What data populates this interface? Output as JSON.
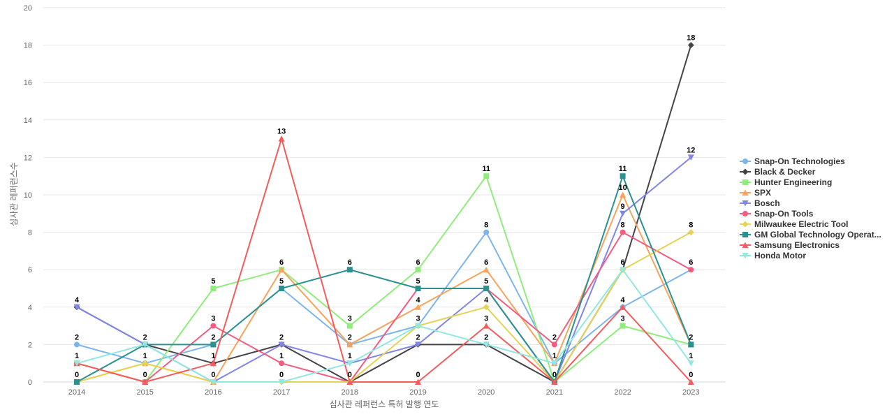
{
  "chart_data": {
    "type": "line",
    "title": "",
    "xlabel": "심사관 레퍼런스 특허 발행 연도",
    "ylabel": "심사관 레퍼런스수",
    "x": [
      "2014",
      "2015",
      "2016",
      "2017",
      "2018",
      "2019",
      "2020",
      "2021",
      "2022",
      "2023"
    ],
    "ylim": [
      0,
      20
    ],
    "yticks": [
      0,
      2,
      4,
      6,
      8,
      10,
      12,
      14,
      16,
      18,
      20
    ],
    "grid": true,
    "legend_position": "right",
    "series": [
      {
        "name": "Snap-On Technologies",
        "color": "#7cb5ec",
        "marker": "circle",
        "values": [
          2,
          1,
          2,
          5,
          2,
          3,
          8,
          1,
          4,
          6
        ]
      },
      {
        "name": "Black & Decker",
        "color": "#434348",
        "marker": "diamond",
        "values": [
          4,
          2,
          1,
          2,
          0,
          2,
          2,
          0,
          6,
          18
        ]
      },
      {
        "name": "Hunter Engineering",
        "color": "#90ed7d",
        "marker": "square",
        "values": [
          1,
          0,
          5,
          6,
          3,
          6,
          11,
          0,
          3,
          2
        ]
      },
      {
        "name": "SPX",
        "color": "#f7a35c",
        "marker": "triangle",
        "values": [
          0,
          1,
          0,
          6,
          2,
          4,
          6,
          1,
          10,
          2
        ]
      },
      {
        "name": "Bosch",
        "color": "#8085e9",
        "marker": "triangle-down",
        "values": [
          4,
          2,
          0,
          2,
          1,
          2,
          5,
          0,
          9,
          12
        ]
      },
      {
        "name": "Snap-On Tools",
        "color": "#f15c80",
        "marker": "circle",
        "values": [
          1,
          0,
          3,
          1,
          0,
          5,
          5,
          2,
          8,
          6
        ]
      },
      {
        "name": "Milwaukee Electric Tool",
        "color": "#e4d354",
        "marker": "diamond",
        "values": [
          0,
          1,
          0,
          0,
          0,
          3,
          4,
          0,
          6,
          8
        ]
      },
      {
        "name": "GM Global Technology Operat...",
        "color": "#2b908f",
        "marker": "square",
        "values": [
          0,
          2,
          2,
          5,
          6,
          5,
          5,
          0,
          11,
          2
        ]
      },
      {
        "name": "Samsung Electronics",
        "color": "#f45b5b",
        "marker": "triangle",
        "values": [
          1,
          0,
          1,
          13,
          0,
          0,
          3,
          0,
          4,
          0
        ]
      },
      {
        "name": "Honda Motor",
        "color": "#91e8e1",
        "marker": "triangle-down",
        "values": [
          1,
          2,
          0,
          0,
          1,
          3,
          2,
          1,
          6,
          1
        ]
      }
    ],
    "data_labels": [
      {
        "year": "2014",
        "value": 4,
        "text": "4",
        "series": "Black & Decker"
      },
      {
        "year": "2014",
        "value": 2,
        "text": "2",
        "series": "Snap-On Technologies"
      },
      {
        "year": "2014",
        "value": 1,
        "text": "1",
        "series": "Hunter Engineering"
      },
      {
        "year": "2014",
        "value": 0,
        "text": "0",
        "series": "GM Global Technology Operat..."
      },
      {
        "year": "2015",
        "value": 2,
        "text": "2",
        "series": "GM Global Technology Operat..."
      },
      {
        "year": "2015",
        "value": 1,
        "text": "1",
        "series": "SPX"
      },
      {
        "year": "2015",
        "value": 0,
        "text": "0",
        "series": "Samsung Electronics"
      },
      {
        "year": "2016",
        "value": 5,
        "text": "5",
        "series": "Hunter Engineering"
      },
      {
        "year": "2016",
        "value": 3,
        "text": "3",
        "series": "Snap-On Tools"
      },
      {
        "year": "2016",
        "value": 2,
        "text": "2",
        "series": "GM Global Technology Operat..."
      },
      {
        "year": "2016",
        "value": 1,
        "text": "1",
        "series": "Black & Decker"
      },
      {
        "year": "2016",
        "value": 0,
        "text": "0",
        "series": "Bosch"
      },
      {
        "year": "2017",
        "value": 13,
        "text": "13",
        "series": "Samsung Electronics"
      },
      {
        "year": "2017",
        "value": 6,
        "text": "6",
        "series": "Hunter Engineering"
      },
      {
        "year": "2017",
        "value": 5,
        "text": "5",
        "series": "GM Global Technology Operat..."
      },
      {
        "year": "2017",
        "value": 2,
        "text": "2",
        "series": "Black & Decker"
      },
      {
        "year": "2017",
        "value": 1,
        "text": "1",
        "series": "Snap-On Tools"
      },
      {
        "year": "2017",
        "value": 0,
        "text": "0",
        "series": "Honda Motor"
      },
      {
        "year": "2018",
        "value": 6,
        "text": "6",
        "series": "GM Global Technology Operat..."
      },
      {
        "year": "2018",
        "value": 3,
        "text": "3",
        "series": "Hunter Engineering"
      },
      {
        "year": "2018",
        "value": 2,
        "text": "2",
        "series": "SPX"
      },
      {
        "year": "2018",
        "value": 1,
        "text": "1",
        "series": "Bosch"
      },
      {
        "year": "2018",
        "value": 0,
        "text": "0",
        "series": "Black & Decker"
      },
      {
        "year": "2019",
        "value": 6,
        "text": "6",
        "series": "Hunter Engineering"
      },
      {
        "year": "2019",
        "value": 5,
        "text": "5",
        "series": "GM Global Technology Operat..."
      },
      {
        "year": "2019",
        "value": 4,
        "text": "4",
        "series": "SPX"
      },
      {
        "year": "2019",
        "value": 3,
        "text": "3",
        "series": "Snap-On Technologies"
      },
      {
        "year": "2019",
        "value": 2,
        "text": "2",
        "series": "Black & Decker"
      },
      {
        "year": "2019",
        "value": 0,
        "text": "0",
        "series": "Samsung Electronics"
      },
      {
        "year": "2020",
        "value": 11,
        "text": "11",
        "series": "Hunter Engineering"
      },
      {
        "year": "2020",
        "value": 8,
        "text": "8",
        "series": "Snap-On Technologies"
      },
      {
        "year": "2020",
        "value": 6,
        "text": "6",
        "series": "SPX"
      },
      {
        "year": "2020",
        "value": 5,
        "text": "5",
        "series": "GM Global Technology Operat..."
      },
      {
        "year": "2020",
        "value": 4,
        "text": "4",
        "series": "Milwaukee Electric Tool"
      },
      {
        "year": "2020",
        "value": 3,
        "text": "3",
        "series": "Samsung Electronics"
      },
      {
        "year": "2020",
        "value": 2,
        "text": "2",
        "series": "Black & Decker"
      },
      {
        "year": "2021",
        "value": 2,
        "text": "2",
        "series": "Snap-On Tools"
      },
      {
        "year": "2021",
        "value": 1,
        "text": "1",
        "series": "Snap-On Technologies"
      },
      {
        "year": "2021",
        "value": 0,
        "text": "0",
        "series": "Black & Decker"
      },
      {
        "year": "2022",
        "value": 11,
        "text": "11",
        "series": "GM Global Technology Operat..."
      },
      {
        "year": "2022",
        "value": 10,
        "text": "10",
        "series": "SPX"
      },
      {
        "year": "2022",
        "value": 9,
        "text": "9",
        "series": "Bosch"
      },
      {
        "year": "2022",
        "value": 8,
        "text": "8",
        "series": "Snap-On Tools"
      },
      {
        "year": "2022",
        "value": 6,
        "text": "6",
        "series": "Black & Decker"
      },
      {
        "year": "2022",
        "value": 4,
        "text": "4",
        "series": "Snap-On Technologies"
      },
      {
        "year": "2022",
        "value": 3,
        "text": "3",
        "series": "Hunter Engineering"
      },
      {
        "year": "2023",
        "value": 18,
        "text": "18",
        "series": "Black & Decker"
      },
      {
        "year": "2023",
        "value": 12,
        "text": "12",
        "series": "Bosch"
      },
      {
        "year": "2023",
        "value": 8,
        "text": "8",
        "series": "Milwaukee Electric Tool"
      },
      {
        "year": "2023",
        "value": 6,
        "text": "6",
        "series": "Snap-On Tools"
      },
      {
        "year": "2023",
        "value": 2,
        "text": "2",
        "series": "GM Global Technology Operat..."
      },
      {
        "year": "2023",
        "value": 1,
        "text": "1",
        "series": "Honda Motor"
      },
      {
        "year": "2023",
        "value": 0,
        "text": "0",
        "series": "Samsung Electronics"
      }
    ]
  }
}
